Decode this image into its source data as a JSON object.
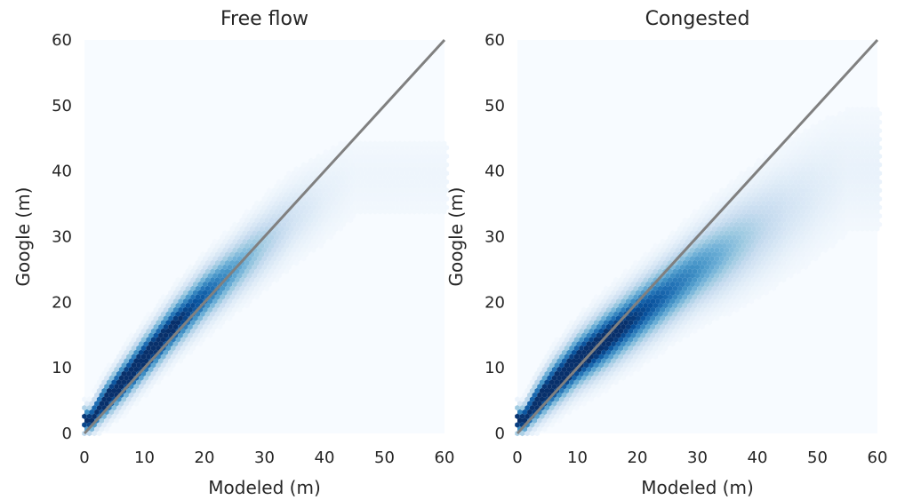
{
  "chart_data": [
    {
      "type": "heatmap",
      "title": "Free flow",
      "xlabel": "Modeled (m)",
      "ylabel": "Google (m)",
      "xlim": [
        0,
        60
      ],
      "ylim": [
        0,
        60
      ],
      "xticks": [
        0,
        10,
        20,
        30,
        40,
        50,
        60
      ],
      "yticks": [
        0,
        10,
        20,
        30,
        40,
        50,
        60
      ],
      "grid": false,
      "colormap": "Blues",
      "reference_line": {
        "x": [
          0,
          60
        ],
        "y": [
          0,
          60
        ],
        "color": "#808080"
      },
      "density_ridge": {
        "x": [
          1,
          3,
          6,
          10,
          15,
          20,
          25,
          30,
          35,
          40,
          45
        ],
        "y": [
          2,
          4.5,
          7.5,
          11.5,
          16.5,
          21,
          25,
          29,
          33,
          36,
          39
        ],
        "spread": [
          1.2,
          1.6,
          1.9,
          2.1,
          2.3,
          2.5,
          2.7,
          3.1,
          3.5,
          4.0,
          4.5
        ],
        "intensity": [
          0.95,
          1.0,
          1.0,
          1.0,
          0.9,
          0.72,
          0.5,
          0.3,
          0.16,
          0.08,
          0.04
        ]
      }
    },
    {
      "type": "heatmap",
      "title": "Congested",
      "xlabel": "Modeled (m)",
      "ylabel": "Google (m)",
      "xlim": [
        0,
        60
      ],
      "ylim": [
        0,
        60
      ],
      "xticks": [
        0,
        10,
        20,
        30,
        40,
        50,
        60
      ],
      "yticks": [
        0,
        10,
        20,
        30,
        40,
        50,
        60
      ],
      "grid": false,
      "colormap": "Blues",
      "reference_line": {
        "x": [
          0,
          60
        ],
        "y": [
          0,
          60
        ],
        "color": "#808080"
      },
      "density_ridge": {
        "x": [
          1,
          3,
          6,
          10,
          15,
          20,
          25,
          30,
          35,
          40,
          45,
          50,
          55
        ],
        "y": [
          2,
          4.5,
          7.5,
          11,
          14.5,
          18,
          21.5,
          25,
          28,
          31,
          34,
          37,
          40
        ],
        "spread": [
          1.3,
          1.8,
          2.2,
          2.5,
          2.8,
          3.0,
          3.2,
          3.5,
          4.0,
          4.5,
          5.0,
          5.5,
          6.0
        ],
        "intensity": [
          0.95,
          1.0,
          1.0,
          1.0,
          0.95,
          0.82,
          0.68,
          0.55,
          0.4,
          0.26,
          0.16,
          0.1,
          0.06
        ]
      }
    }
  ]
}
